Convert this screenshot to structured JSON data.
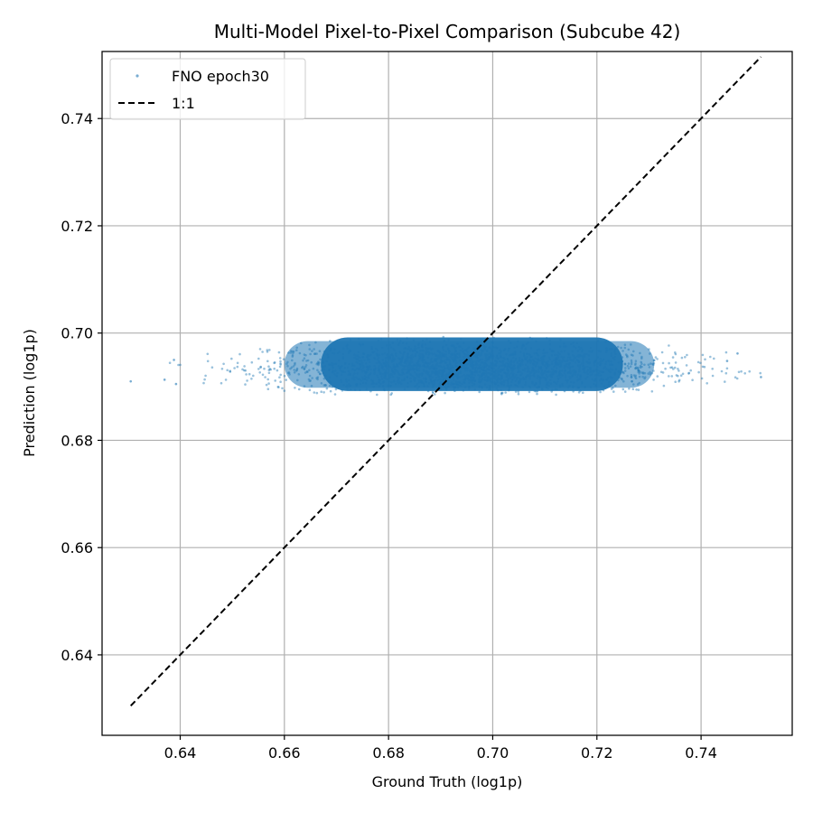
{
  "chart_data": {
    "type": "scatter",
    "title": "Multi-Model Pixel-to-Pixel Comparison (Subcube 42)",
    "xlabel": "Ground Truth (log1p)",
    "ylabel": "Prediction (log1p)",
    "xlim": [
      0.625,
      0.7575
    ],
    "ylim": [
      0.625,
      0.7525
    ],
    "xticks": [
      "0.64",
      "0.66",
      "0.68",
      "0.70",
      "0.72",
      "0.74"
    ],
    "yticks": [
      "0.64",
      "0.66",
      "0.68",
      "0.70",
      "0.72",
      "0.74"
    ],
    "grid": true,
    "legend_position": "upper-left",
    "series": [
      {
        "name": "FNO epoch30",
        "kind": "scatter",
        "color": "#1f77b4",
        "x_range": [
          0.6305,
          0.7515
        ],
        "y_range": [
          0.6885,
          0.7002
        ],
        "x_center": 0.695,
        "y_center": 0.6935,
        "outliers": [
          {
            "x": 0.6305,
            "y": 0.691
          },
          {
            "x": 0.637,
            "y": 0.6913
          },
          {
            "x": 0.6388,
            "y": 0.695
          },
          {
            "x": 0.6392,
            "y": 0.6905
          },
          {
            "x": 0.747,
            "y": 0.6962
          },
          {
            "x": 0.745,
            "y": 0.6948
          },
          {
            "x": 0.7515,
            "y": 0.6918
          }
        ]
      },
      {
        "name": "1:1",
        "kind": "line",
        "color": "#000000",
        "dash": "dashed",
        "x": [
          0.6305,
          0.7515
        ],
        "y": [
          0.6305,
          0.7515
        ]
      }
    ]
  }
}
